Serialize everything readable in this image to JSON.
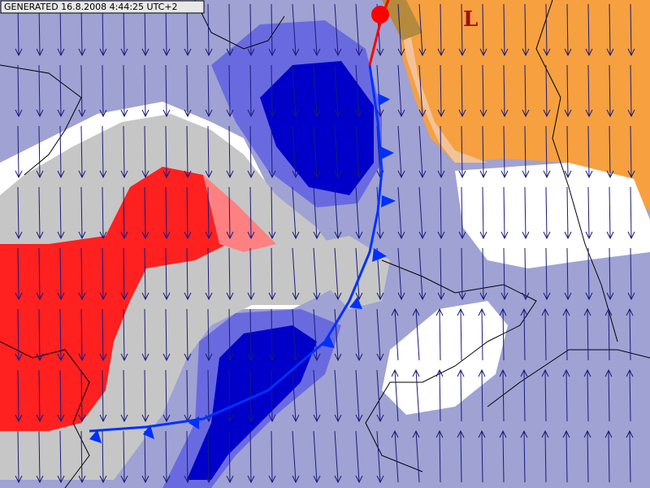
{
  "header": {
    "label": "GENERATED 16.8.2008 4:44:25 UTC+2"
  },
  "pressure_centers": [
    {
      "label": "L"
    }
  ]
}
